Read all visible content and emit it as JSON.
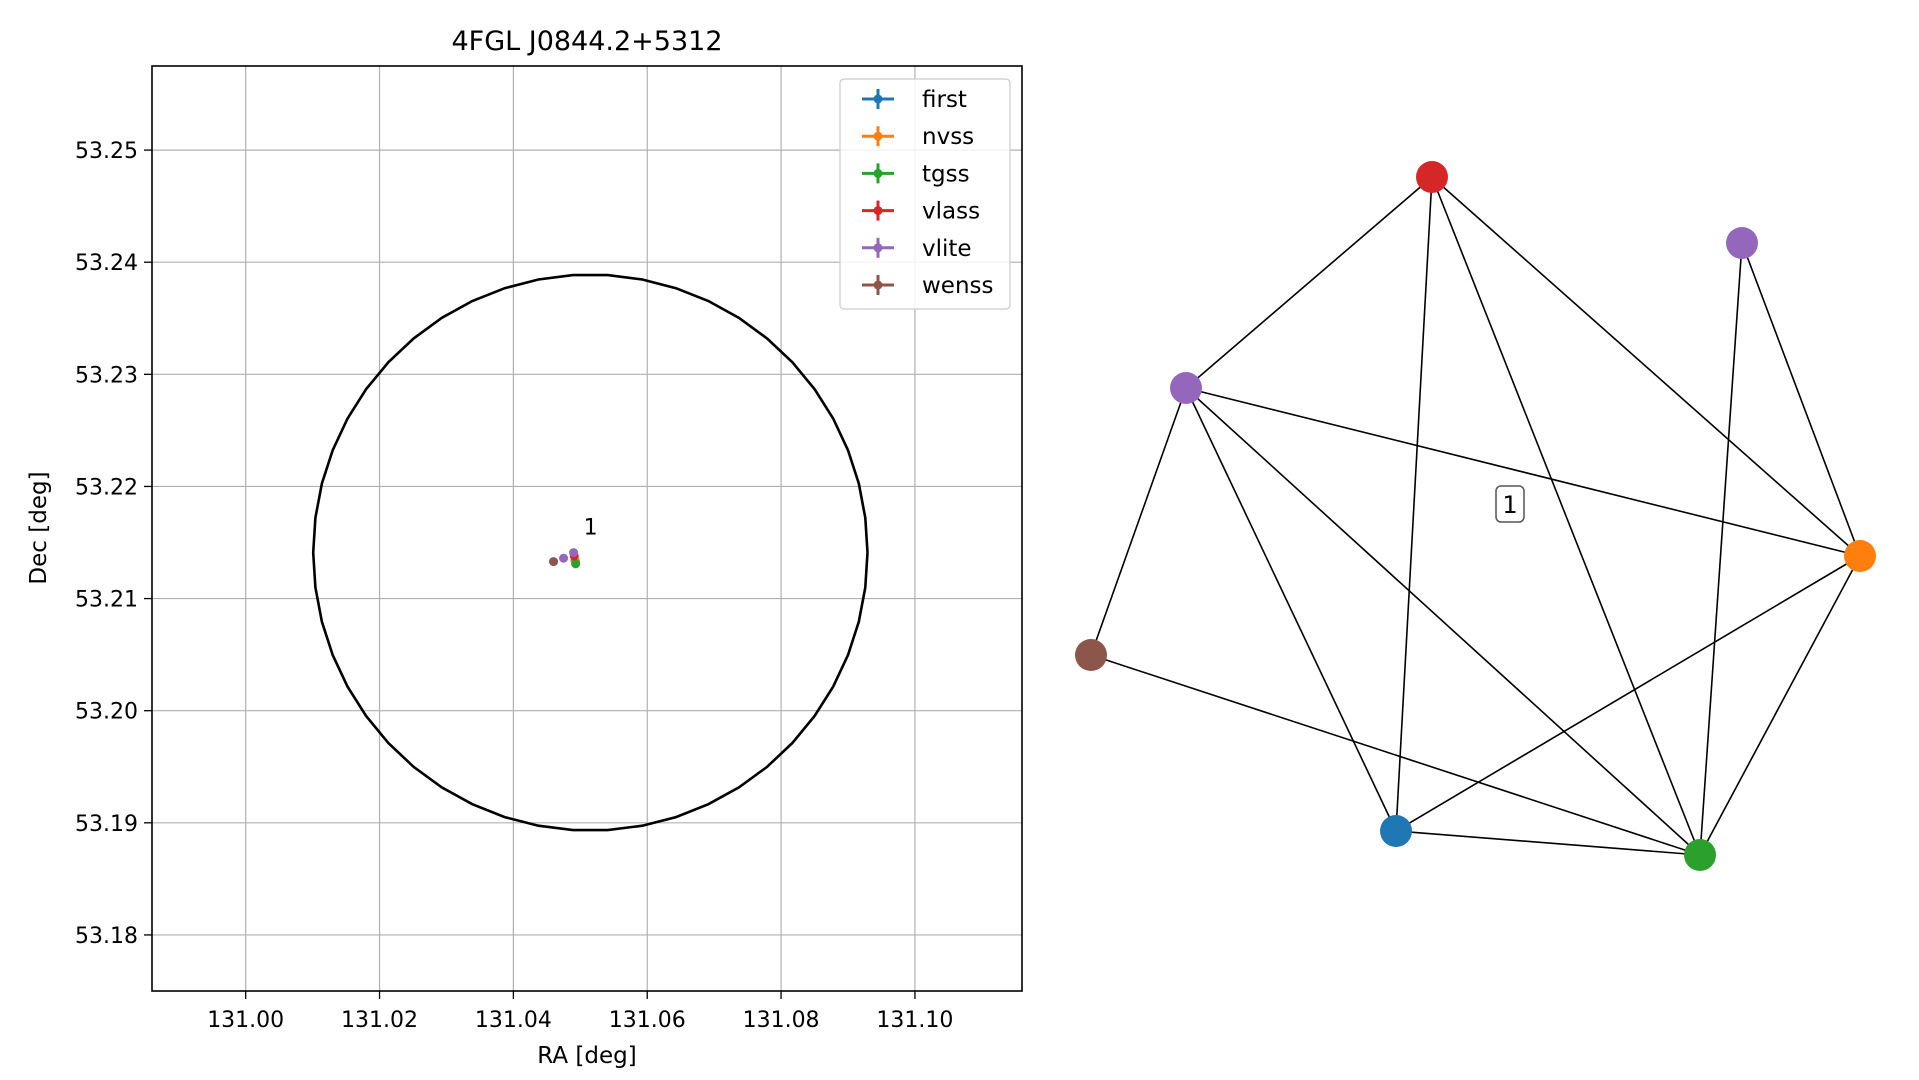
{
  "chart_data": [
    {
      "type": "scatter",
      "title": "4FGL J0844.2+5312",
      "xlabel": "RA [deg]",
      "ylabel": "Dec [deg]",
      "xlim": [
        130.986,
        131.116
      ],
      "ylim": [
        53.175,
        53.2575
      ],
      "xticks": [
        "131.00",
        "131.02",
        "131.04",
        "131.06",
        "131.08",
        "131.10"
      ],
      "yticks": [
        "53.18",
        "53.19",
        "53.20",
        "53.21",
        "53.22",
        "53.23",
        "53.24",
        "53.25"
      ],
      "grid": true,
      "legend": "top-right",
      "circle": {
        "ra": 131.0515,
        "dec": 53.2141,
        "radius_deg": 0.0248
      },
      "source_label": "1",
      "series": [
        {
          "name": "first",
          "color": "#1f77b4",
          "x": [
            131.0492
          ],
          "y": [
            53.2134
          ]
        },
        {
          "name": "nvss",
          "color": "#ff7f0e",
          "x": [
            131.0493
          ],
          "y": [
            53.2133
          ]
        },
        {
          "name": "tgss",
          "color": "#2ca02c",
          "x": [
            131.0493
          ],
          "y": [
            53.2131
          ]
        },
        {
          "name": "vlass",
          "color": "#d62728",
          "x": [
            131.0491
          ],
          "y": [
            53.2138
          ]
        },
        {
          "name": "vlite",
          "color": "#9467bd",
          "x": [
            131.0475,
            131.049
          ],
          "y": [
            53.2136,
            53.2141
          ]
        },
        {
          "name": "wenss",
          "color": "#8c564b",
          "x": [
            131.046
          ],
          "y": [
            53.2133
          ]
        }
      ]
    },
    {
      "type": "network",
      "cluster_label": "1",
      "nodes": [
        {
          "id": "vlass",
          "color": "#d62728"
        },
        {
          "id": "vlite_a",
          "color": "#9467bd"
        },
        {
          "id": "vlite_b",
          "color": "#9467bd"
        },
        {
          "id": "nvss",
          "color": "#ff7f0e"
        },
        {
          "id": "wenss",
          "color": "#8c564b"
        },
        {
          "id": "first",
          "color": "#1f77b4"
        },
        {
          "id": "tgss",
          "color": "#2ca02c"
        }
      ],
      "edges": [
        [
          "vlass",
          "vlite_b"
        ],
        [
          "vlass",
          "first"
        ],
        [
          "vlass",
          "tgss"
        ],
        [
          "vlass",
          "nvss"
        ],
        [
          "vlite_a",
          "nvss"
        ],
        [
          "vlite_a",
          "tgss"
        ],
        [
          "vlite_b",
          "nvss"
        ],
        [
          "vlite_b",
          "wenss"
        ],
        [
          "vlite_b",
          "first"
        ],
        [
          "vlite_b",
          "tgss"
        ],
        [
          "wenss",
          "tgss"
        ],
        [
          "first",
          "nvss"
        ],
        [
          "first",
          "tgss"
        ],
        [
          "nvss",
          "tgss"
        ]
      ]
    }
  ]
}
